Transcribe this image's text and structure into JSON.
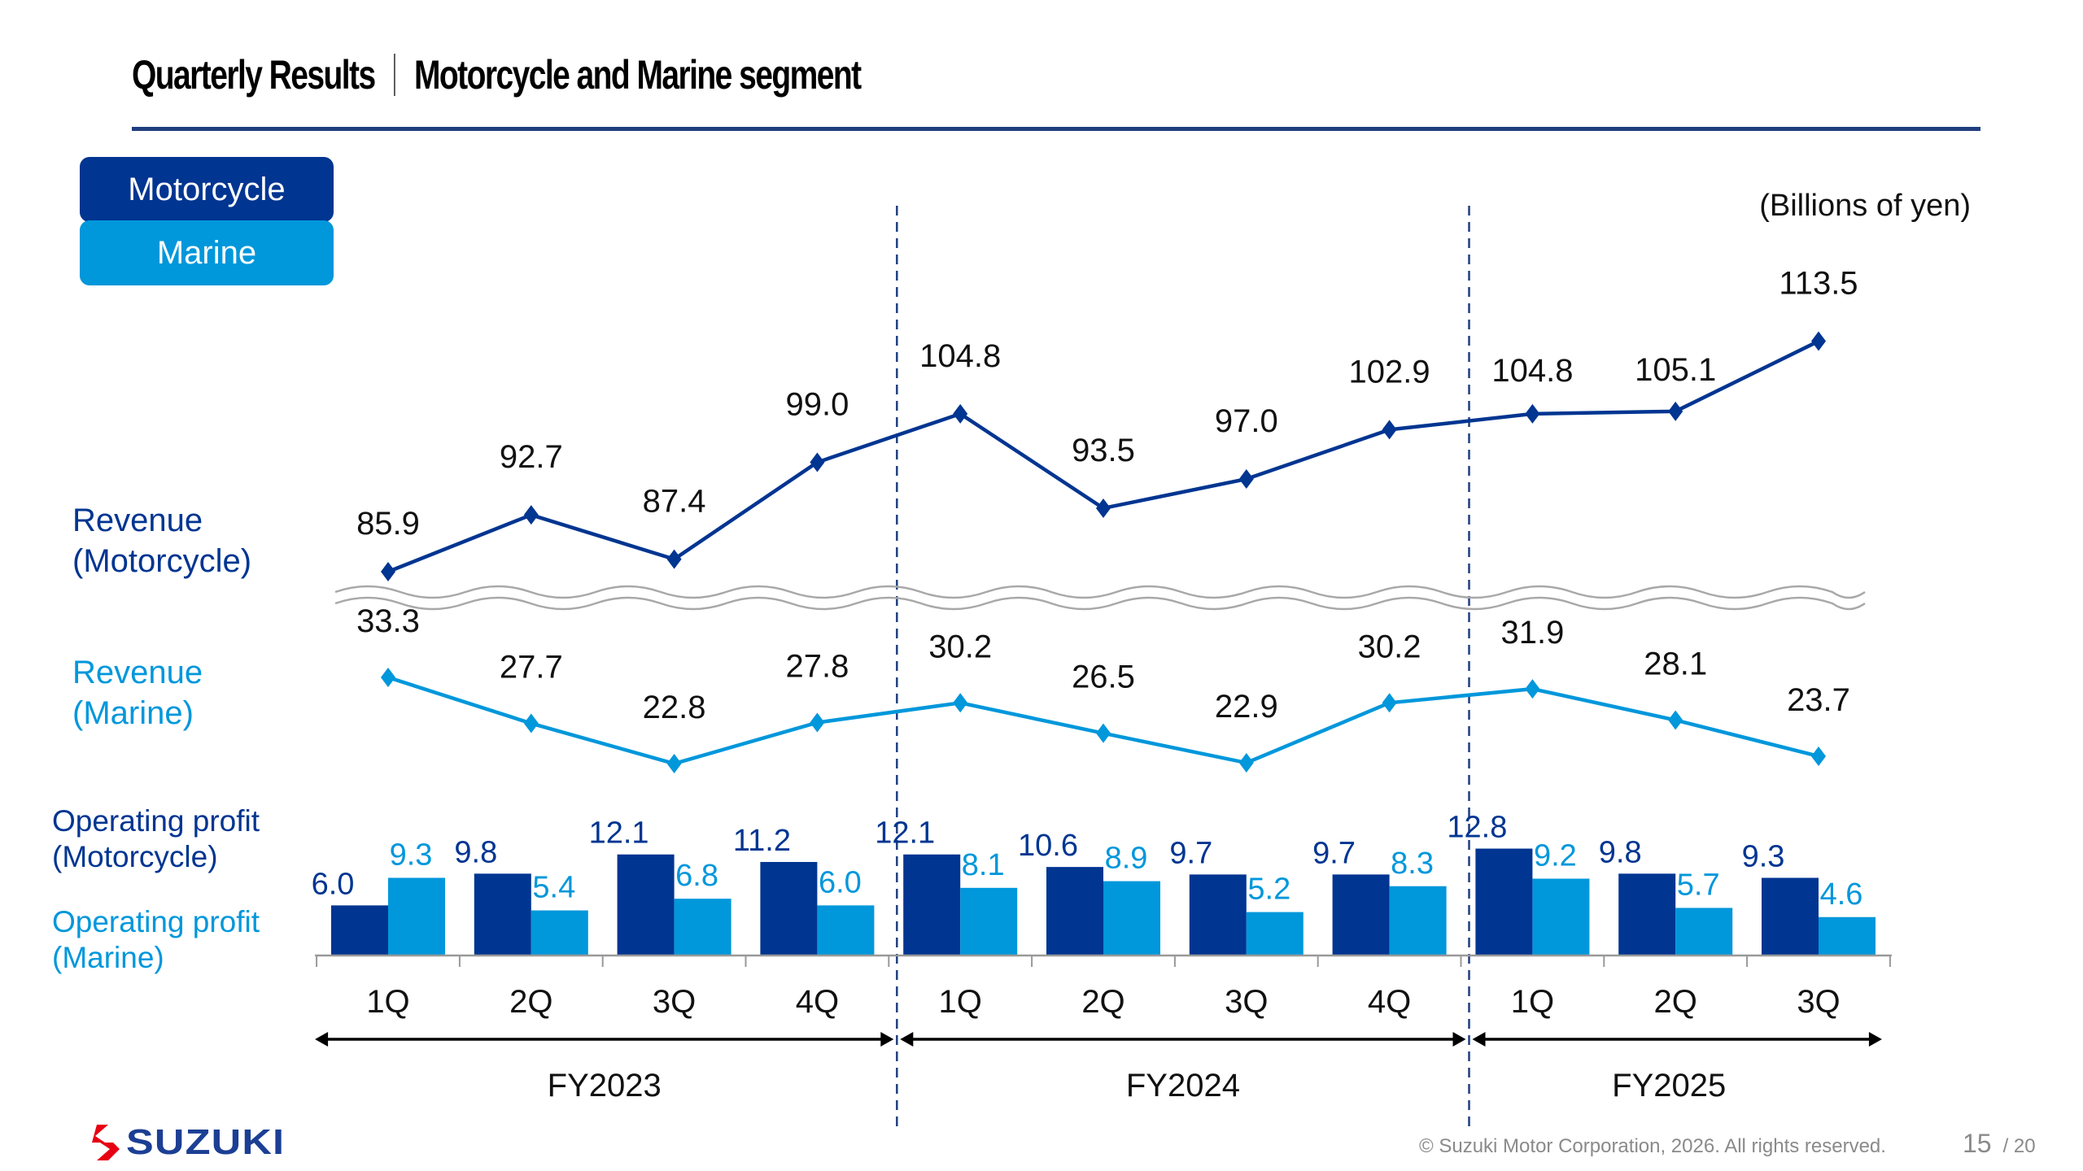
{
  "header": {
    "title_left": "Quarterly Results",
    "title_right": "Motorcycle and Marine segment"
  },
  "legend": {
    "motorcycle": "Motorcycle",
    "marine": "Marine"
  },
  "row_labels": {
    "revenue_moto": [
      "Revenue",
      "(Motorcycle)"
    ],
    "revenue_marine": [
      "Revenue",
      "(Marine)"
    ],
    "op_moto": [
      "Operating profit",
      "(Motorcycle)"
    ],
    "op_marine": [
      "Operating profit",
      "(Marine)"
    ]
  },
  "unit_label": "(Billions of yen)",
  "colors": {
    "motorcycle": "#003591",
    "marine": "#0097db",
    "title_rule": "#1f3f7f",
    "logo_red": "#e60012",
    "logo_blue": "#1c3f94"
  },
  "chart_data": {
    "type": "line+bar",
    "title": "Quarterly Results | Motorcycle and Marine segment",
    "unit": "Billions of yen",
    "categories": [
      "1Q",
      "2Q",
      "3Q",
      "4Q",
      "1Q",
      "2Q",
      "3Q",
      "4Q",
      "1Q",
      "2Q",
      "3Q"
    ],
    "fiscal_years": [
      {
        "label": "FY2023",
        "quarters": 4
      },
      {
        "label": "FY2024",
        "quarters": 4
      },
      {
        "label": "FY2025",
        "quarters": 3
      }
    ],
    "revenue": {
      "type": "line",
      "axis_break": true,
      "series": [
        {
          "name": "Revenue (Motorcycle)",
          "color": "#003591",
          "values": [
            85.9,
            92.7,
            87.4,
            99.0,
            104.8,
            93.5,
            97.0,
            102.9,
            104.8,
            105.1,
            113.5
          ]
        },
        {
          "name": "Revenue (Marine)",
          "color": "#0097db",
          "values": [
            33.3,
            27.7,
            22.8,
            27.8,
            30.2,
            26.5,
            22.9,
            30.2,
            31.9,
            28.1,
            23.7
          ]
        }
      ]
    },
    "operating_profit": {
      "type": "bar",
      "series": [
        {
          "name": "Operating profit (Motorcycle)",
          "color": "#003591",
          "values": [
            6.0,
            9.8,
            12.1,
            11.2,
            12.1,
            10.6,
            9.7,
            9.7,
            12.8,
            9.8,
            9.3
          ]
        },
        {
          "name": "Operating profit (Marine)",
          "color": "#0097db",
          "values": [
            9.3,
            5.4,
            6.8,
            6.0,
            8.1,
            8.9,
            5.2,
            8.3,
            9.2,
            5.7,
            4.6
          ]
        }
      ]
    },
    "legend": [
      "Motorcycle",
      "Marine"
    ],
    "legend_position": "top-left",
    "grid": false
  },
  "footer": {
    "brand": "SUZUKI",
    "copyright": "© Suzuki Motor Corporation, 2026. All rights reserved.",
    "page_number": "15",
    "page_total": "/ 20"
  }
}
